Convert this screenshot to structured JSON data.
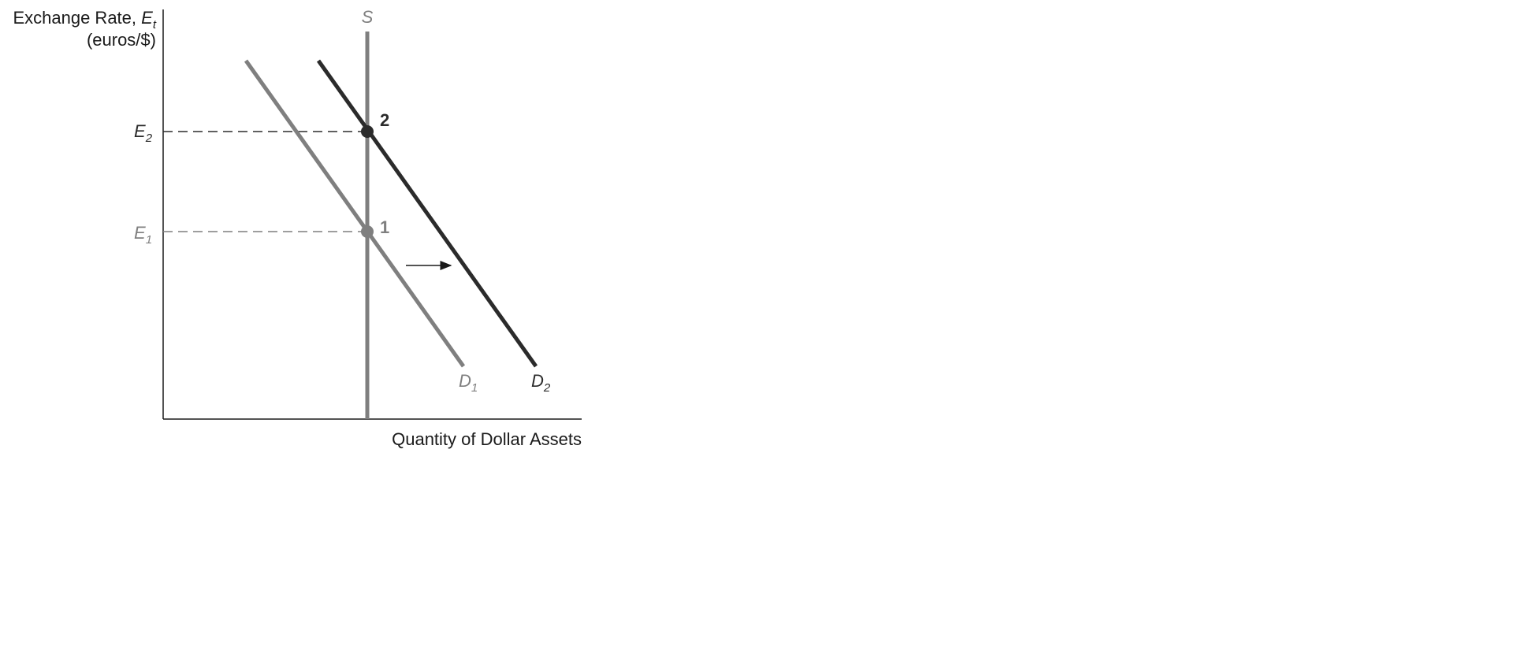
{
  "y_axis": {
    "title_main": "Exchange Rate, ",
    "title_var": "E",
    "title_sub": "t",
    "units": "(euros/$)"
  },
  "x_axis": {
    "title": "Quantity of Dollar Assets"
  },
  "curves": {
    "supply": "S",
    "demand_1": {
      "base": "D",
      "sub": "1"
    },
    "demand_2": {
      "base": "D",
      "sub": "2"
    }
  },
  "levels": {
    "e1": {
      "base": "E",
      "sub": "1"
    },
    "e2": {
      "base": "E",
      "sub": "2"
    }
  },
  "points": {
    "p1": "1",
    "p2": "2"
  },
  "colors": {
    "initial": "#7f7f7f",
    "final": "#2b2b2b",
    "axis": "#1a1a1a"
  },
  "icons": {
    "shift_arrow": "right-arrow-icon"
  }
}
